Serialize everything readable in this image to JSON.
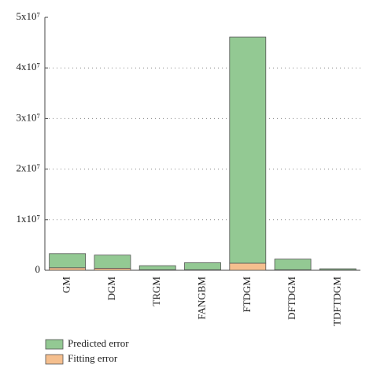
{
  "chart_data": {
    "type": "stacked-bar",
    "categories": [
      "GM",
      "DGM",
      "TRGM",
      "FANGBM",
      "FTDGM",
      "DFTDGM",
      "TDFTDGM"
    ],
    "series": [
      {
        "name": "Predicted error",
        "color": "#93c993",
        "values": [
          2800000,
          2600000,
          800000,
          1400000,
          44700000,
          2100000,
          250000
        ]
      },
      {
        "name": "Fitting error",
        "color": "#f5bf8e",
        "values": [
          500000,
          400000,
          100000,
          100000,
          1400000,
          100000,
          50000
        ]
      }
    ],
    "ylim": [
      0,
      50000000
    ],
    "yticks": [
      0,
      {
        "value": 10000000,
        "label": "1x10⁷"
      },
      {
        "value": 20000000,
        "label": "2x10⁷"
      },
      {
        "value": 30000000,
        "label": "3x10⁷"
      },
      {
        "value": 40000000,
        "label": "4x10⁷"
      },
      {
        "value": 50000000,
        "label": "5x10⁷"
      }
    ],
    "grid": true
  }
}
